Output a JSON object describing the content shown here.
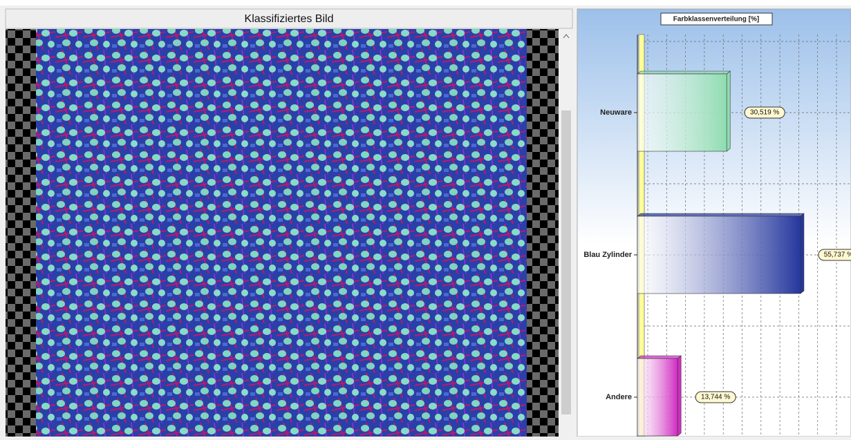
{
  "panel_title": "Klassifiziertes Bild",
  "chart_data": {
    "type": "bar",
    "orientation": "horizontal",
    "title": "Farbklassenverteilung [%]",
    "categories": [
      "Neuware",
      "Blau Zylinder",
      "Andere"
    ],
    "series": [
      {
        "values": [
          30.519,
          55.737,
          13.744
        ],
        "colors": [
          "#8fdcb0",
          "#25379e",
          "#d02cc2"
        ],
        "value_labels": [
          "30,519 %",
          "55,737 %",
          "13,744 %"
        ]
      }
    ],
    "xlim": [
      0,
      73
    ],
    "grid": true
  }
}
